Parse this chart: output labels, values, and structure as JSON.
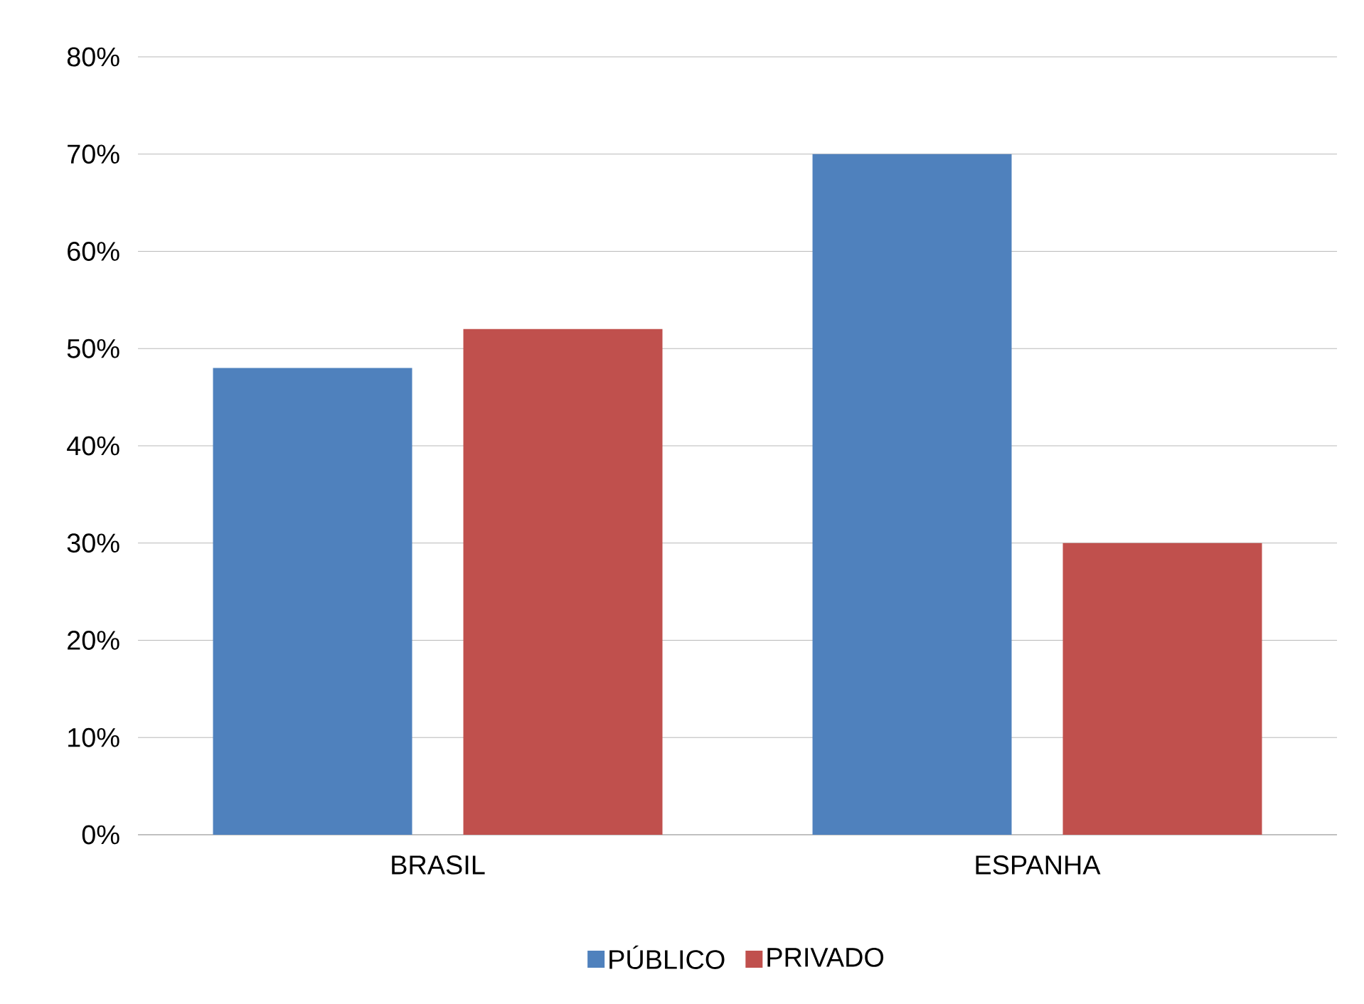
{
  "chart_data": {
    "type": "bar",
    "categories": [
      "BRASIL",
      "ESPANHA"
    ],
    "series": [
      {
        "name": "PÚBLICO",
        "color": "#4f81bd",
        "values": [
          48,
          70
        ]
      },
      {
        "name": "PRIVADO",
        "color": "#c0504d",
        "values": [
          52,
          30
        ]
      }
    ],
    "ylim": [
      0,
      80
    ],
    "yticks": [
      {
        "value": 0,
        "label": "0%"
      },
      {
        "value": 10,
        "label": "10%"
      },
      {
        "value": 20,
        "label": "20%"
      },
      {
        "value": 30,
        "label": "30%"
      },
      {
        "value": 40,
        "label": "40%"
      },
      {
        "value": 50,
        "label": "50%"
      },
      {
        "value": 60,
        "label": "60%"
      },
      {
        "value": 70,
        "label": "70%"
      },
      {
        "value": 80,
        "label": "80%"
      }
    ],
    "grid": "y",
    "legend": "bottom"
  }
}
